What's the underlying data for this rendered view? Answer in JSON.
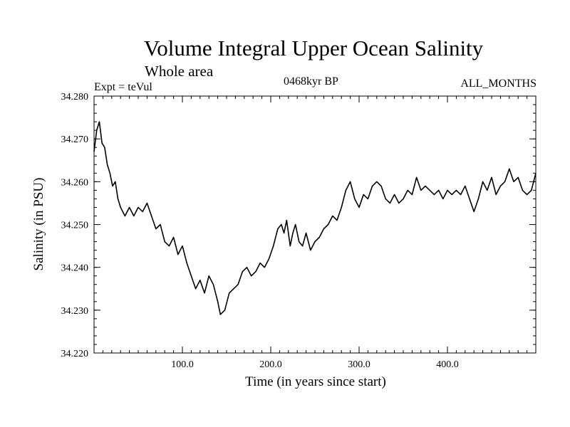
{
  "header": {
    "title": "Volume Integral Upper Ocean Salinity",
    "subtitle": "Whole area",
    "experiment": "Expt = teVul",
    "period": "0468kyr BP",
    "months": "ALL_MONTHS"
  },
  "chart_data": {
    "type": "line",
    "title": "Volume Integral Upper Ocean Salinity",
    "xlabel": "Time (in years since start)",
    "ylabel": "Salinity (in PSU)",
    "xlim": [
      0,
      500
    ],
    "ylim": [
      34.22,
      34.28
    ],
    "x_ticks": [
      100,
      200,
      300,
      400
    ],
    "x_tick_labels": [
      "100.0",
      "200.0",
      "300.0",
      "400.0"
    ],
    "y_ticks": [
      34.22,
      34.23,
      34.24,
      34.25,
      34.26,
      34.27,
      34.28
    ],
    "y_tick_labels": [
      "34.220",
      "34.230",
      "34.240",
      "34.250",
      "34.260",
      "34.270",
      "34.280"
    ],
    "grid": false,
    "series": [
      {
        "name": "Salinity",
        "color": "#000000",
        "x": [
          0,
          3,
          6,
          9,
          12,
          15,
          18,
          21,
          24,
          27,
          30,
          35,
          40,
          45,
          50,
          55,
          60,
          65,
          70,
          75,
          80,
          85,
          90,
          95,
          100,
          105,
          110,
          115,
          120,
          125,
          130,
          135,
          140,
          143,
          148,
          153,
          158,
          163,
          168,
          173,
          178,
          183,
          188,
          193,
          198,
          203,
          208,
          212,
          215,
          218,
          222,
          225,
          228,
          232,
          236,
          240,
          245,
          250,
          255,
          260,
          265,
          270,
          275,
          280,
          285,
          290,
          295,
          300,
          305,
          310,
          315,
          320,
          325,
          330,
          335,
          340,
          345,
          350,
          355,
          360,
          365,
          370,
          375,
          380,
          385,
          390,
          395,
          400,
          405,
          410,
          415,
          420,
          425,
          430,
          435,
          440,
          445,
          450,
          455,
          460,
          465,
          470,
          475,
          480,
          485,
          490,
          495,
          500
        ],
        "values": [
          34.267,
          34.272,
          34.274,
          34.269,
          34.268,
          34.264,
          34.262,
          34.259,
          34.26,
          34.256,
          34.254,
          34.252,
          34.254,
          34.252,
          34.254,
          34.253,
          34.255,
          34.252,
          34.249,
          34.25,
          34.246,
          34.245,
          34.247,
          34.243,
          34.245,
          34.241,
          34.238,
          34.235,
          34.237,
          34.234,
          34.238,
          34.236,
          34.232,
          34.229,
          34.23,
          34.234,
          34.235,
          34.236,
          34.239,
          34.24,
          34.238,
          34.239,
          34.241,
          34.24,
          34.242,
          34.245,
          34.249,
          34.25,
          34.248,
          34.251,
          34.245,
          34.248,
          34.25,
          34.246,
          34.245,
          34.248,
          34.244,
          34.246,
          34.247,
          34.249,
          34.25,
          34.252,
          34.251,
          34.254,
          34.258,
          34.26,
          34.256,
          34.254,
          34.257,
          34.256,
          34.259,
          34.26,
          34.259,
          34.256,
          34.255,
          34.257,
          34.255,
          34.256,
          34.258,
          34.257,
          34.261,
          34.258,
          34.259,
          34.258,
          34.257,
          34.258,
          34.256,
          34.258,
          34.257,
          34.258,
          34.257,
          34.259,
          34.256,
          34.253,
          34.256,
          34.26,
          34.258,
          34.261,
          34.257,
          34.259,
          34.26,
          34.263,
          34.26,
          34.261,
          34.258,
          34.257,
          34.258,
          34.262
        ]
      }
    ]
  }
}
